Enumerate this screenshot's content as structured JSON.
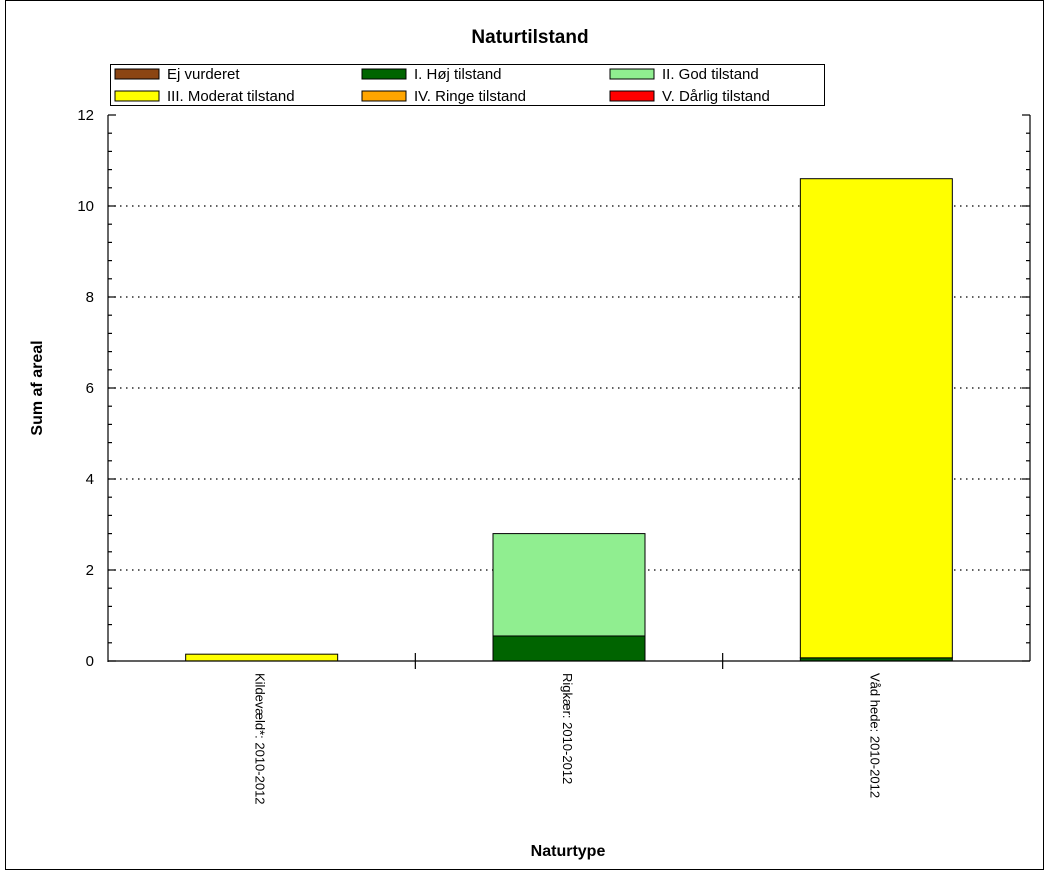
{
  "chart_data": {
    "type": "bar",
    "stacked": true,
    "title": "Naturtilstand",
    "xlabel": "Naturtype",
    "ylabel": "Sum af areal",
    "ylim": [
      0,
      12
    ],
    "yticks": [
      0,
      2,
      4,
      6,
      8,
      10,
      12
    ],
    "grid": "horizontal-dotted",
    "legend_position": "top",
    "categories": [
      "Kildevæld*: 2010-2012",
      "Rigkær: 2010-2012",
      "Våd hede: 2010-2012"
    ],
    "series": [
      {
        "name": "Ej vurderet",
        "color": "#8B4513",
        "values": [
          0,
          0,
          0
        ]
      },
      {
        "name": "I. Høj tilstand",
        "color": "#006400",
        "values": [
          0,
          0.55,
          0.07
        ]
      },
      {
        "name": "II. God tilstand",
        "color": "#90EE90",
        "values": [
          0,
          2.25,
          0
        ]
      },
      {
        "name": "III. Moderat tilstand",
        "color": "#FFFF00",
        "values": [
          0.15,
          0,
          10.53
        ]
      },
      {
        "name": "IV. Ringe tilstand",
        "color": "#FFA500",
        "values": [
          0,
          0,
          0
        ]
      },
      {
        "name": "V. Dårlig tilstand",
        "color": "#FF0000",
        "values": [
          0,
          0,
          0
        ]
      }
    ]
  }
}
